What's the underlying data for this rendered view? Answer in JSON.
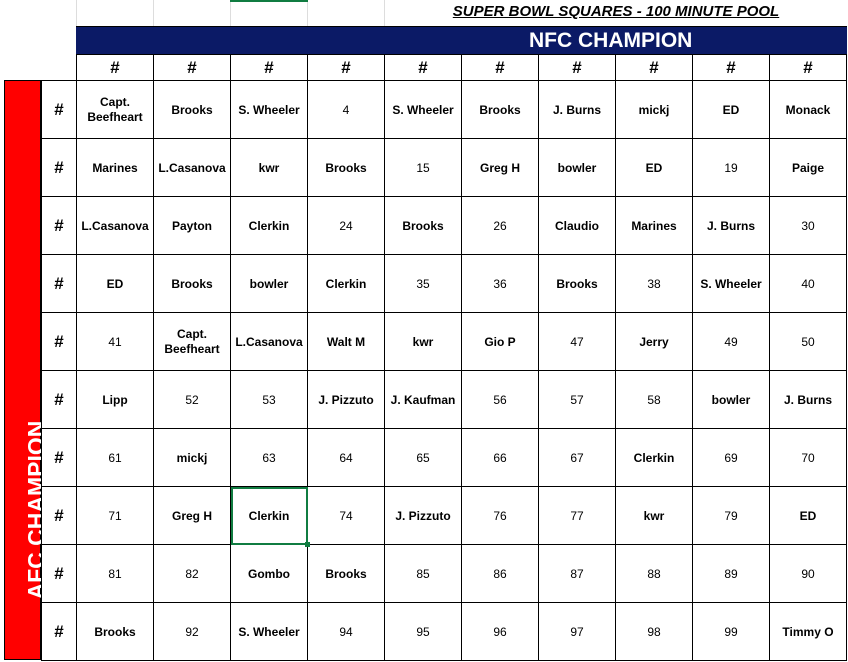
{
  "title": "SUPER BOWL SQUARES - 100 MINUTE POOL",
  "nfc_label": "NFC CHAMPION",
  "afc_label": "AFC CHAMPION",
  "column_headers": [
    "#",
    "#",
    "#",
    "#",
    "#",
    "#",
    "#",
    "#",
    "#",
    "#"
  ],
  "row_headers": [
    "#",
    "#",
    "#",
    "#",
    "#",
    "#",
    "#",
    "#",
    "#",
    "#"
  ],
  "colors": {
    "nfc_banner": "#0b1a66",
    "afc_banner": "#ff0000",
    "selection": "#107c41"
  },
  "selected_cell": {
    "row": 8,
    "column": 3
  },
  "grid": [
    [
      "Capt. Beefheart",
      "Brooks",
      "S. Wheeler",
      "4",
      "S. Wheeler",
      "Brooks",
      "J. Burns",
      "mickj",
      "ED",
      "Monack"
    ],
    [
      "Marines",
      "L.Casanova",
      "kwr",
      "Brooks",
      "15",
      "Greg H",
      "bowler",
      "ED",
      "19",
      "Paige"
    ],
    [
      "L.Casanova",
      "Payton",
      "Clerkin",
      "24",
      "Brooks",
      "26",
      "Claudio",
      "Marines",
      "J. Burns",
      "30"
    ],
    [
      "ED",
      "Brooks",
      "bowler",
      "Clerkin",
      "35",
      "36",
      "Brooks",
      "38",
      "S. Wheeler",
      "40"
    ],
    [
      "41",
      "Capt. Beefheart",
      "L.Casanova",
      "Walt M",
      "kwr",
      "Gio P",
      "47",
      "Jerry",
      "49",
      "50"
    ],
    [
      "Lipp",
      "52",
      "53",
      "J. Pizzuto",
      "J. Kaufman",
      "56",
      "57",
      "58",
      "bowler",
      "J. Burns"
    ],
    [
      "61",
      "mickj",
      "63",
      "64",
      "65",
      "66",
      "67",
      "Clerkin",
      "69",
      "70"
    ],
    [
      "71",
      "Greg H",
      "Clerkin",
      "74",
      "J. Pizzuto",
      "76",
      "77",
      "kwr",
      "79",
      "ED"
    ],
    [
      "81",
      "82",
      "Gombo",
      "Brooks",
      "85",
      "86",
      "87",
      "88",
      "89",
      "90"
    ],
    [
      "Brooks",
      "92",
      "S. Wheeler",
      "94",
      "95",
      "96",
      "97",
      "98",
      "99",
      "Timmy O"
    ]
  ]
}
